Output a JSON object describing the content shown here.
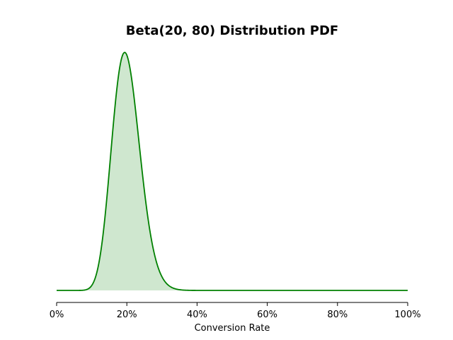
{
  "chart_data": {
    "type": "area",
    "title": "Beta(20, 80) Distribution PDF",
    "xlabel": "Conversion Rate",
    "ylabel": "",
    "distribution": {
      "name": "Beta",
      "alpha": 20,
      "beta": 80
    },
    "xlim": [
      0,
      1
    ],
    "x_ticks": [
      0,
      0.2,
      0.4,
      0.6,
      0.8,
      1.0
    ],
    "x_tick_labels": [
      "0%",
      "20%",
      "40%",
      "60%",
      "80%",
      "100%"
    ],
    "y_axis_visible": false,
    "grid": false,
    "legend": "none",
    "series": [
      {
        "line_color": "#008000",
        "fill_color": "#008000",
        "fill_opacity": 0.19
      }
    ]
  }
}
